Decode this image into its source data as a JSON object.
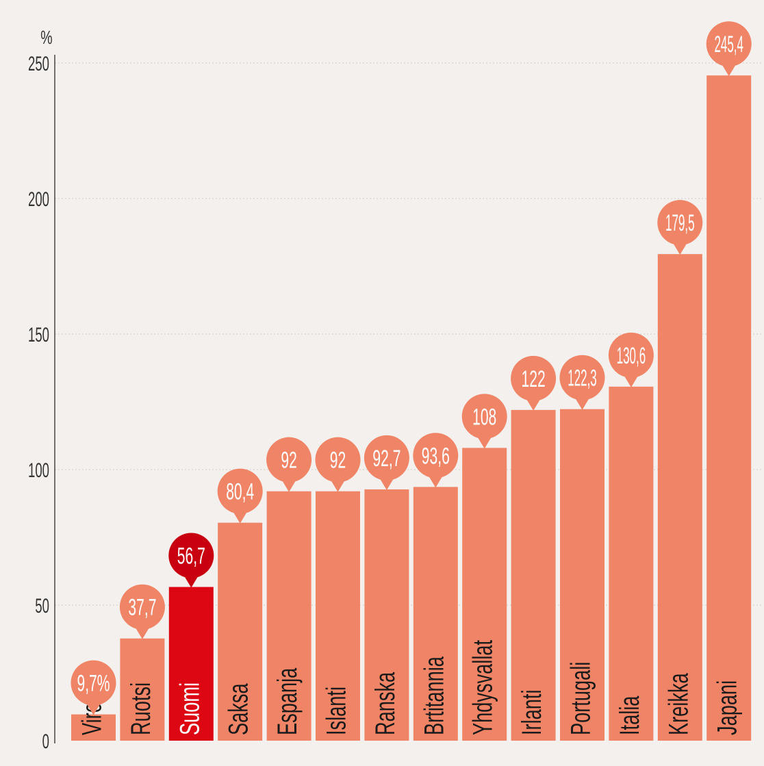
{
  "chart_data": {
    "type": "bar",
    "title": "",
    "xlabel": "",
    "ylabel": "",
    "unit_label": "%",
    "categories": [
      "Viro",
      "Ruotsi",
      "Suomi",
      "Saksa",
      "Espanja",
      "Islanti",
      "Ranska",
      "Brtitannia",
      "Yhdysvallat",
      "Irlanti",
      "Portugali",
      "Italia",
      "Kreikka",
      "Japani"
    ],
    "values": [
      9.7,
      37.7,
      56.7,
      80.4,
      92,
      92,
      92.7,
      93.6,
      108,
      122,
      122.3,
      130.6,
      179.5,
      245.4
    ],
    "value_labels": [
      "9,7%",
      "37,7",
      "56,7",
      "80,4",
      "92",
      "92",
      "92,7",
      "93,6",
      "108",
      "122",
      "122,3",
      "130,6",
      "179,5",
      "245,4"
    ],
    "highlight": "Suomi",
    "ylim": [
      0,
      250
    ],
    "yticks": [
      0,
      50,
      100,
      150,
      200,
      250
    ],
    "grid": true,
    "colors": {
      "bar": "#ef8466",
      "highlight": "#dd0613",
      "bubble": "#ef8466",
      "bubble_highlight": "#c8000f",
      "grid": "#d8d2ce",
      "tick_text": "#333333",
      "bar_text": "#1a1a1a",
      "highlight_text": "#ffffff",
      "background": "#f4f0ed"
    }
  }
}
